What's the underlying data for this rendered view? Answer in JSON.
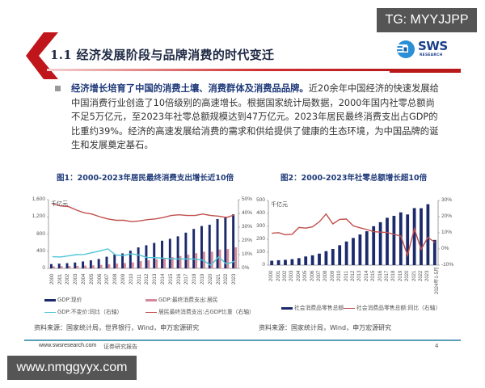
{
  "watermarks": {
    "top": "TG: MYYJJPP",
    "bottom": "www.nmggyyx.com"
  },
  "header": {
    "title": "1.1 经济发展阶段与品牌消费的时代变迁"
  },
  "logo": {
    "text": "SWS",
    "subtext": "RESEARCH"
  },
  "bullet": {
    "bold": "经济增长培育了中国的消费土壤、消费群体及消费品品牌。",
    "body": "近20余年中国经济的快速发展给中国消费行业创造了10倍级别的高速增长。根据国家统计局数据，2000年国内社零总额尚不足5万亿元，至2023年社零总额规模达到47万亿元。2023年居民最终消费支出占GDP的比重约39%。经济的高速发展给消费的需求和供给提供了健康的生态环境，为中国品牌的诞生和发展奠定基石。"
  },
  "colors": {
    "navy": "#1b2a6b",
    "pink_bar": "#d48a9a",
    "red_line": "#c0504d",
    "cyan_line": "#4fc6d9",
    "title_blue": "#1f3a7a",
    "brand_red": "#c0161b"
  },
  "chart_data": [
    {
      "type": "bar",
      "title": "图1：2000-2023年居民最终消费支出增长近10倍",
      "unit_left": "千亿元",
      "ylim_left": [
        0,
        1600
      ],
      "yticks_left": [
        "1,600",
        "1,200",
        "800",
        "400",
        "0"
      ],
      "ylim_right": [
        0,
        50
      ],
      "yticks_right": [
        "50%",
        "40%",
        "30%",
        "20%",
        "10%",
        "0%"
      ],
      "categories": [
        "2000",
        "2001",
        "2002",
        "2003",
        "2004",
        "2005",
        "2006",
        "2007",
        "2008",
        "2009",
        "2010",
        "2011",
        "2012",
        "2013",
        "2014",
        "2015",
        "2016",
        "2017",
        "2018",
        "2019",
        "2020",
        "2021",
        "2022",
        "2023"
      ],
      "series": [
        {
          "name": "GDP:现价",
          "kind": "bar",
          "axis": "left",
          "color": "#1b2a6b",
          "values": [
            100,
            110,
            121,
            137,
            161,
            187,
            219,
            271,
            320,
            348,
            412,
            488,
            538,
            593,
            644,
            689,
            746,
            832,
            919,
            986,
            1016,
            1149,
            1204,
            1260
          ]
        },
        {
          "name": "GDP:最终消费支出:居民",
          "kind": "bar",
          "axis": "left",
          "color": "#d48a9a",
          "values": [
            47,
            51,
            54,
            58,
            63,
            71,
            80,
            94,
            111,
            123,
            140,
            168,
            190,
            212,
            236,
            260,
            288,
            320,
            354,
            388,
            387,
            438,
            450,
            490
          ]
        },
        {
          "name": "GDP:不变价:同比（右轴）",
          "kind": "line",
          "axis": "right",
          "color": "#4fc6d9",
          "values": [
            8.5,
            8.3,
            9.1,
            10.0,
            10.1,
            11.4,
            12.7,
            14.2,
            9.7,
            9.4,
            10.6,
            9.6,
            7.9,
            7.8,
            7.4,
            7.0,
            6.8,
            6.9,
            6.7,
            6.0,
            2.2,
            8.4,
            3.0,
            5.2
          ]
        },
        {
          "name": "居民最终消费支出:占GDP比重（右轴）",
          "kind": "line",
          "axis": "right",
          "color": "#c0504d",
          "values": [
            47,
            45.5,
            45,
            42.5,
            40.5,
            39.5,
            37.5,
            36,
            35,
            35,
            34,
            34.5,
            35.5,
            36,
            37,
            38.5,
            39,
            38.5,
            38.5,
            39.5,
            38.5,
            38,
            37,
            39
          ]
        }
      ],
      "legend": [
        "GDP:现价",
        "GDP:最终消费支出:居民",
        "GDP:不变价:同比（右轴）",
        "居民最终消费支出:占GDP比重（右轴）"
      ],
      "source": "资料来源：国家统计局，世界银行，Wind，申万宏源研究"
    },
    {
      "type": "bar",
      "title": "图2：2000-2023年社零总额增长超10倍",
      "unit_left": "千亿元",
      "ylim_left": [
        0,
        500
      ],
      "yticks_left": [
        "500",
        "400",
        "300",
        "200",
        "100",
        "0"
      ],
      "ylim_right": [
        -10,
        30
      ],
      "yticks_right": [
        "30%",
        "20%",
        "10%",
        "0%",
        "-10%"
      ],
      "categories": [
        "2000",
        "2001",
        "2002",
        "2003",
        "2004",
        "2005",
        "2006",
        "2007",
        "2008",
        "2009",
        "2010",
        "2011",
        "2012",
        "2013",
        "2014",
        "2015",
        "2016",
        "2017",
        "2018",
        "2019",
        "2020",
        "2021",
        "2022",
        "2023",
        "2024年1-5月"
      ],
      "series": [
        {
          "name": "社会消费品零售总额",
          "kind": "bar",
          "axis": "left",
          "color": "#1b2a6b",
          "values": [
            34,
            38,
            41,
            46,
            54,
            67,
            76,
            89,
            108,
            125,
            154,
            183,
            210,
            237,
            262,
            301,
            332,
            366,
            381,
            408,
            392,
            441,
            440,
            471,
            195
          ]
        },
        {
          "name": "社会消费品零售总额:同比（右轴）",
          "kind": "line",
          "axis": "right",
          "color": "#c0504d",
          "values": [
            9.7,
            10.1,
            8.8,
            9.1,
            13.3,
            12.9,
            13.7,
            16.8,
            21.6,
            15.5,
            18.3,
            18.5,
            14.3,
            13.1,
            12.0,
            10.7,
            10.4,
            10.2,
            9.0,
            8.0,
            -3.9,
            12.5,
            -0.2,
            7.2,
            4.1
          ]
        }
      ],
      "legend": [
        "社会消费品零售总额",
        "社会消费品零售总额:同比（右轴）"
      ],
      "source": "资料来源：国家统计局，Wind，申万宏源研究"
    }
  ],
  "footer": {
    "url": "www.swsresearch.com",
    "label": "证券研究报告",
    "page": "4"
  }
}
